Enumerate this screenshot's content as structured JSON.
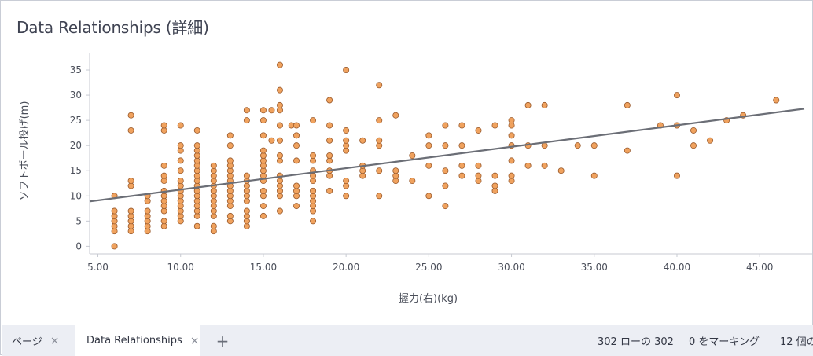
{
  "visualization": {
    "title": "Data Relationships (詳細)"
  },
  "chart_data": {
    "type": "scatter",
    "xlabel": "握力(右)(kg)",
    "ylabel": "ソフトボール投げ(m)",
    "xlim": [
      4.5,
      47.7
    ],
    "ylim": [
      -1.5,
      37.5
    ],
    "x_ticks": [
      "5.00",
      "10.00",
      "15.00",
      "20.00",
      "25.00",
      "30.00",
      "35.00",
      "40.00",
      "45.00"
    ],
    "y_ticks": [
      "0",
      "5",
      "10",
      "15",
      "20",
      "25",
      "30",
      "35"
    ],
    "grid": false,
    "trendline": {
      "x1": 4.5,
      "y1": 8.9,
      "x2": 47.7,
      "y2": 27.3
    },
    "point_color": "#f0a25e",
    "point_stroke": "#9a5a2c",
    "line_color": "#6b6e76",
    "points": [
      [
        6,
        0
      ],
      [
        6,
        3
      ],
      [
        6,
        4
      ],
      [
        6,
        5
      ],
      [
        6,
        6
      ],
      [
        6,
        7
      ],
      [
        6,
        10
      ],
      [
        7,
        3
      ],
      [
        7,
        4
      ],
      [
        7,
        5
      ],
      [
        7,
        6
      ],
      [
        7,
        7
      ],
      [
        7,
        12
      ],
      [
        7,
        13
      ],
      [
        7,
        23
      ],
      [
        7,
        26
      ],
      [
        8,
        3
      ],
      [
        8,
        4
      ],
      [
        8,
        5
      ],
      [
        8,
        6
      ],
      [
        8,
        7
      ],
      [
        8,
        9
      ],
      [
        8,
        10
      ],
      [
        9,
        4
      ],
      [
        9,
        5
      ],
      [
        9,
        7
      ],
      [
        9,
        8
      ],
      [
        9,
        9
      ],
      [
        9,
        10
      ],
      [
        9,
        11
      ],
      [
        9,
        13
      ],
      [
        9,
        14
      ],
      [
        9,
        16
      ],
      [
        9,
        23
      ],
      [
        9,
        24
      ],
      [
        10,
        5
      ],
      [
        10,
        6
      ],
      [
        10,
        7
      ],
      [
        10,
        8
      ],
      [
        10,
        9
      ],
      [
        10,
        10
      ],
      [
        10,
        11
      ],
      [
        10,
        12
      ],
      [
        10,
        13
      ],
      [
        10,
        15
      ],
      [
        10,
        17
      ],
      [
        10,
        19
      ],
      [
        10,
        20
      ],
      [
        10,
        24
      ],
      [
        11,
        4
      ],
      [
        11,
        6
      ],
      [
        11,
        7
      ],
      [
        11,
        8
      ],
      [
        11,
        9
      ],
      [
        11,
        10
      ],
      [
        11,
        11
      ],
      [
        11,
        12
      ],
      [
        11,
        13
      ],
      [
        11,
        14
      ],
      [
        11,
        15
      ],
      [
        11,
        16
      ],
      [
        11,
        17
      ],
      [
        11,
        18
      ],
      [
        11,
        19
      ],
      [
        11,
        20
      ],
      [
        11,
        23
      ],
      [
        12,
        3
      ],
      [
        12,
        4
      ],
      [
        12,
        6
      ],
      [
        12,
        7
      ],
      [
        12,
        8
      ],
      [
        12,
        9
      ],
      [
        12,
        10
      ],
      [
        12,
        11
      ],
      [
        12,
        12
      ],
      [
        12,
        13
      ],
      [
        12,
        14
      ],
      [
        12,
        15
      ],
      [
        12,
        16
      ],
      [
        13,
        5
      ],
      [
        13,
        6
      ],
      [
        13,
        8
      ],
      [
        13,
        9
      ],
      [
        13,
        10
      ],
      [
        13,
        11
      ],
      [
        13,
        12
      ],
      [
        13,
        13
      ],
      [
        13,
        14
      ],
      [
        13,
        15
      ],
      [
        13,
        16
      ],
      [
        13,
        17
      ],
      [
        13,
        20
      ],
      [
        13,
        22
      ],
      [
        14,
        4
      ],
      [
        14,
        5
      ],
      [
        14,
        6
      ],
      [
        14,
        7
      ],
      [
        14,
        9
      ],
      [
        14,
        10
      ],
      [
        14,
        11
      ],
      [
        14,
        12
      ],
      [
        14,
        13
      ],
      [
        14,
        14
      ],
      [
        14,
        25
      ],
      [
        14,
        27
      ],
      [
        15,
        6
      ],
      [
        15,
        8
      ],
      [
        15,
        10
      ],
      [
        15,
        11
      ],
      [
        15,
        13
      ],
      [
        15,
        14
      ],
      [
        15,
        15
      ],
      [
        15,
        16
      ],
      [
        15,
        17
      ],
      [
        15,
        18
      ],
      [
        15,
        19
      ],
      [
        15,
        22
      ],
      [
        15,
        25
      ],
      [
        15,
        27
      ],
      [
        15.5,
        21
      ],
      [
        15.5,
        27
      ],
      [
        16,
        7
      ],
      [
        16,
        10
      ],
      [
        16,
        11
      ],
      [
        16,
        12
      ],
      [
        16,
        13
      ],
      [
        16,
        14
      ],
      [
        16,
        17
      ],
      [
        16,
        18
      ],
      [
        16,
        21
      ],
      [
        16,
        24
      ],
      [
        16,
        27
      ],
      [
        16,
        28
      ],
      [
        16,
        31
      ],
      [
        16,
        36
      ],
      [
        16.7,
        24
      ],
      [
        17,
        8
      ],
      [
        17,
        10
      ],
      [
        17,
        11
      ],
      [
        17,
        12
      ],
      [
        17,
        17
      ],
      [
        17,
        20
      ],
      [
        17,
        22
      ],
      [
        17,
        24
      ],
      [
        18,
        5
      ],
      [
        18,
        7
      ],
      [
        18,
        8
      ],
      [
        18,
        9
      ],
      [
        18,
        10
      ],
      [
        18,
        11
      ],
      [
        18,
        13
      ],
      [
        18,
        14
      ],
      [
        18,
        15
      ],
      [
        18,
        17
      ],
      [
        18,
        18
      ],
      [
        18,
        25
      ],
      [
        19,
        11
      ],
      [
        19,
        14
      ],
      [
        19,
        15
      ],
      [
        19,
        17
      ],
      [
        19,
        18
      ],
      [
        19,
        21
      ],
      [
        19,
        24
      ],
      [
        19,
        29
      ],
      [
        20,
        10
      ],
      [
        20,
        12
      ],
      [
        20,
        13
      ],
      [
        20,
        19
      ],
      [
        20,
        20
      ],
      [
        20,
        21
      ],
      [
        20,
        23
      ],
      [
        20,
        35
      ],
      [
        21,
        14
      ],
      [
        21,
        15
      ],
      [
        21,
        16
      ],
      [
        21,
        21
      ],
      [
        22,
        10
      ],
      [
        22,
        15
      ],
      [
        22,
        20
      ],
      [
        22,
        21
      ],
      [
        22,
        25
      ],
      [
        22,
        32
      ],
      [
        23,
        13
      ],
      [
        23,
        14
      ],
      [
        23,
        15
      ],
      [
        23,
        26
      ],
      [
        24,
        13
      ],
      [
        24,
        18
      ],
      [
        25,
        10
      ],
      [
        25,
        16
      ],
      [
        25,
        20
      ],
      [
        25,
        22
      ],
      [
        26,
        8
      ],
      [
        26,
        12
      ],
      [
        26,
        15
      ],
      [
        26,
        20
      ],
      [
        26,
        24
      ],
      [
        27,
        14
      ],
      [
        27,
        16
      ],
      [
        27,
        20
      ],
      [
        27,
        24
      ],
      [
        28,
        13
      ],
      [
        28,
        14
      ],
      [
        28,
        16
      ],
      [
        28,
        23
      ],
      [
        29,
        11
      ],
      [
        29,
        12
      ],
      [
        29,
        14
      ],
      [
        29,
        24
      ],
      [
        30,
        13
      ],
      [
        30,
        14
      ],
      [
        30,
        17
      ],
      [
        30,
        20
      ],
      [
        30,
        22
      ],
      [
        30,
        24
      ],
      [
        30,
        25
      ],
      [
        31,
        16
      ],
      [
        31,
        20
      ],
      [
        31,
        28
      ],
      [
        32,
        16
      ],
      [
        32,
        20
      ],
      [
        32,
        28
      ],
      [
        33,
        15
      ],
      [
        34,
        20
      ],
      [
        35,
        14
      ],
      [
        35,
        20
      ],
      [
        37,
        19
      ],
      [
        37,
        28
      ],
      [
        39,
        24
      ],
      [
        40,
        14
      ],
      [
        40,
        24
      ],
      [
        40,
        30
      ],
      [
        41,
        20
      ],
      [
        41,
        23
      ],
      [
        42,
        21
      ],
      [
        43,
        25
      ],
      [
        44,
        26
      ],
      [
        46,
        29
      ]
    ]
  },
  "tabs": {
    "pages_label": "ページ",
    "active_label": "Data Relationships",
    "add_label": "+",
    "close_glyph": "×"
  },
  "status": {
    "rows": "302 ローの 302",
    "marking": "0 をマーキング",
    "columns": "12 個の"
  }
}
